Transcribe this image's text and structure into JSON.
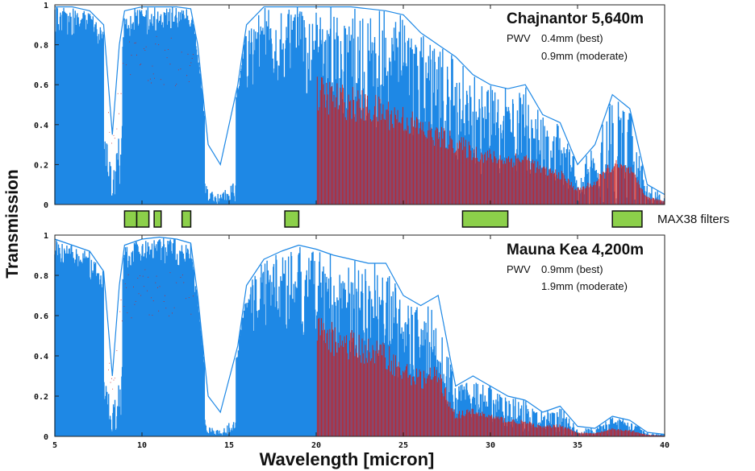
{
  "chart_data": {
    "type": "line",
    "ylabel": "Transmission",
    "xlabel": "Wavelength [micron]",
    "xlim": [
      5,
      40
    ],
    "ylim": [
      0,
      1
    ],
    "x_ticks": [
      "5",
      "10",
      "15",
      "20",
      "25",
      "30",
      "35",
      "40"
    ],
    "y_ticks": [
      "0",
      "0.2",
      "0.4",
      "0.6",
      "0.8",
      "1"
    ],
    "colors": {
      "best": "#1e88e5",
      "moderate": "#cc1f1f",
      "filter_fill": "#8cd04a",
      "filter_stroke": "#111111"
    },
    "panels": [
      {
        "site": "Chajnantor  5,640m",
        "pwv_label": "PWV",
        "pwv_best": "0.4mm (best)",
        "pwv_moderate": "0.9mm (moderate)",
        "series": [
          {
            "name": "0.4mm (best)",
            "style": "best"
          },
          {
            "name": "0.9mm (moderate)",
            "style": "moderate"
          }
        ],
        "envelope_peaks": [
          [
            5.0,
            0.99
          ],
          [
            6.0,
            0.99
          ],
          [
            7.0,
            0.97
          ],
          [
            7.8,
            0.9
          ],
          [
            8.3,
            0.35
          ],
          [
            8.7,
            0.8
          ],
          [
            9.0,
            0.97
          ],
          [
            10.0,
            0.99
          ],
          [
            11.0,
            0.99
          ],
          [
            12.0,
            0.99
          ],
          [
            12.8,
            0.98
          ],
          [
            13.2,
            0.8
          ],
          [
            13.8,
            0.3
          ],
          [
            14.5,
            0.2
          ],
          [
            15.5,
            0.6
          ],
          [
            16.0,
            0.9
          ],
          [
            17.0,
            0.99
          ],
          [
            18.0,
            0.99
          ],
          [
            19.0,
            0.99
          ],
          [
            20.0,
            0.99
          ],
          [
            21.0,
            0.99
          ],
          [
            22.0,
            0.99
          ],
          [
            23.0,
            0.98
          ],
          [
            24.0,
            0.97
          ],
          [
            25.0,
            0.95
          ],
          [
            26.0,
            0.86
          ],
          [
            27.0,
            0.8
          ],
          [
            28.0,
            0.74
          ],
          [
            29.0,
            0.65
          ],
          [
            30.0,
            0.6
          ],
          [
            31.0,
            0.58
          ],
          [
            32.0,
            0.6
          ],
          [
            33.0,
            0.45
          ],
          [
            34.0,
            0.41
          ],
          [
            35.0,
            0.2
          ],
          [
            36.0,
            0.3
          ],
          [
            37.0,
            0.55
          ],
          [
            38.0,
            0.48
          ],
          [
            39.0,
            0.1
          ],
          [
            40.0,
            0.05
          ]
        ]
      },
      {
        "site": "Mauna Kea  4,200m",
        "pwv_label": "PWV",
        "pwv_best": "0.9mm (best)",
        "pwv_moderate": "1.9mm (moderate)",
        "series": [
          {
            "name": "0.9mm (best)",
            "style": "best"
          },
          {
            "name": "1.9mm (moderate)",
            "style": "moderate"
          }
        ],
        "envelope_peaks": [
          [
            5.0,
            0.98
          ],
          [
            6.0,
            0.95
          ],
          [
            7.0,
            0.92
          ],
          [
            7.8,
            0.82
          ],
          [
            8.3,
            0.3
          ],
          [
            8.7,
            0.75
          ],
          [
            9.0,
            0.95
          ],
          [
            10.0,
            0.98
          ],
          [
            11.0,
            0.99
          ],
          [
            12.0,
            0.98
          ],
          [
            12.8,
            0.96
          ],
          [
            13.2,
            0.7
          ],
          [
            13.8,
            0.2
          ],
          [
            14.5,
            0.12
          ],
          [
            15.5,
            0.45
          ],
          [
            16.0,
            0.75
          ],
          [
            17.0,
            0.88
          ],
          [
            18.0,
            0.92
          ],
          [
            19.0,
            0.95
          ],
          [
            20.0,
            0.93
          ],
          [
            21.0,
            0.9
          ],
          [
            22.0,
            0.88
          ],
          [
            23.0,
            0.86
          ],
          [
            24.0,
            0.86
          ],
          [
            25.0,
            0.7
          ],
          [
            26.0,
            0.65
          ],
          [
            27.0,
            0.7
          ],
          [
            28.0,
            0.25
          ],
          [
            29.0,
            0.3
          ],
          [
            30.0,
            0.25
          ],
          [
            31.0,
            0.2
          ],
          [
            32.0,
            0.18
          ],
          [
            33.0,
            0.12
          ],
          [
            34.0,
            0.15
          ],
          [
            35.0,
            0.05
          ],
          [
            36.0,
            0.04
          ],
          [
            37.0,
            0.1
          ],
          [
            38.0,
            0.08
          ],
          [
            39.0,
            0.02
          ],
          [
            40.0,
            0.01
          ]
        ]
      }
    ],
    "filters": {
      "label": "MAX38 filters",
      "bands": [
        [
          9.0,
          9.7
        ],
        [
          9.7,
          10.4
        ],
        [
          10.7,
          11.1
        ],
        [
          12.3,
          12.8
        ],
        [
          18.2,
          19.0
        ],
        [
          28.4,
          31.0
        ],
        [
          37.0,
          38.7
        ]
      ]
    }
  }
}
